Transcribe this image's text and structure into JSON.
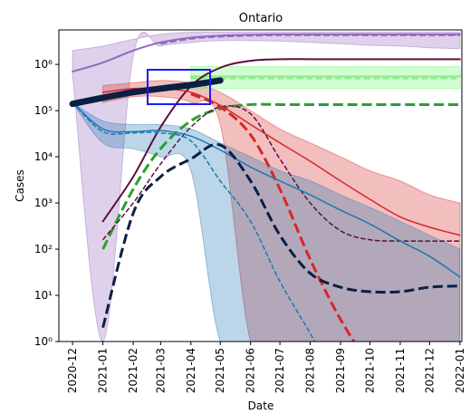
{
  "chart_data": {
    "type": "line",
    "title": "Ontario",
    "x_label": "Date",
    "y_label": "Cases",
    "log_y": true,
    "xlim": [
      "2020-11-17",
      "2022-01-03"
    ],
    "ylim": [
      1,
      5600000
    ],
    "x": [
      "2020-12",
      "2021-01",
      "2021-02",
      "2021-03",
      "2021-04",
      "2021-05",
      "2021-06",
      "2021-07",
      "2021-08",
      "2021-09",
      "2021-10",
      "2021-11",
      "2021-12",
      "2022-01"
    ],
    "xticks": [
      "2020-12",
      "2021-01",
      "2021-02",
      "2021-03",
      "2021-04",
      "2021-05",
      "2021-06",
      "2021-07",
      "2021-08",
      "2021-09",
      "2021-10",
      "2021-11",
      "2021-12",
      "2022-01"
    ],
    "yticks": [
      {
        "value": 1,
        "label": "10⁰"
      },
      {
        "value": 10,
        "label": "10¹"
      },
      {
        "value": 100,
        "label": "10²"
      },
      {
        "value": 1000,
        "label": "10³"
      },
      {
        "value": 10000,
        "label": "10⁴"
      },
      {
        "value": 100000,
        "label": "10⁵"
      },
      {
        "value": 1000000,
        "label": "10⁶"
      }
    ],
    "bands": [
      {
        "color": "#9467bd",
        "upper": [
          2000000,
          2500000,
          3500000,
          4500000,
          5000000,
          5000000,
          5000000,
          5000000,
          5000000,
          5000000,
          5000000,
          5000000,
          5000000,
          5000000
        ],
        "lower": [
          600000,
          1,
          1500000,
          2500000,
          3000000,
          3300000,
          3300000,
          3200000,
          3000000,
          2800000,
          2600000,
          2500000,
          2300000,
          2200000
        ]
      },
      {
        "color": "#d62728",
        "upper": [
          null,
          350000,
          400000,
          450000,
          400000,
          250000,
          100000,
          40000,
          20000,
          10000,
          5000,
          3000,
          1500,
          1000
        ],
        "lower": [
          null,
          150000,
          200000,
          200000,
          150000,
          50000,
          1,
          1,
          1,
          1,
          1,
          1,
          1,
          1
        ]
      },
      {
        "color": "#1f77b4",
        "upper": [
          150000,
          60000,
          50000,
          50000,
          40000,
          20000,
          10000,
          5000,
          3000,
          1500,
          800,
          400,
          200,
          100
        ],
        "lower": [
          150000,
          20000,
          15000,
          10000,
          5000,
          1,
          1,
          1,
          1,
          1,
          1,
          1,
          1,
          1
        ]
      },
      {
        "color": "#66ff66",
        "upper": [
          null,
          null,
          null,
          null,
          900000,
          900000,
          900000,
          900000,
          900000,
          900000,
          900000,
          900000,
          900000,
          900000
        ],
        "lower": [
          null,
          null,
          null,
          null,
          300000,
          300000,
          300000,
          300000,
          300000,
          300000,
          300000,
          300000,
          300000,
          300000
        ]
      }
    ],
    "series": [
      {
        "color": "#9467bd",
        "linestyle": "solid",
        "linewidth": 2,
        "values": [
          700000,
          1100000,
          2000000,
          3000000,
          3800000,
          4200000,
          4400000,
          4500000,
          4500000,
          4500000,
          4500000,
          4500000,
          4500000,
          4500000
        ]
      },
      {
        "color": "#9467bd",
        "linestyle": "dashed",
        "linewidth": 2,
        "values": [
          null,
          null,
          null,
          2800000,
          3600000,
          4000000,
          4200000,
          4300000,
          4300000,
          4300000,
          4300000,
          4300000,
          4300000,
          4300000
        ]
      },
      {
        "color": "#8fe88f",
        "linestyle": "solid",
        "linewidth": 2,
        "values": [
          null,
          null,
          null,
          null,
          550000,
          550000,
          550000,
          550000,
          550000,
          550000,
          550000,
          550000,
          550000,
          550000
        ]
      },
      {
        "color": "#8fe88f",
        "linestyle": "dashed",
        "linewidth": 2,
        "values": [
          null,
          null,
          null,
          null,
          500000,
          500000,
          500000,
          500000,
          500000,
          500000,
          500000,
          500000,
          500000,
          500000
        ]
      },
      {
        "color": "#2ca02c",
        "linestyle": "dashed",
        "linewidth": 3,
        "values": [
          null,
          100,
          2000,
          15000,
          60000,
          110000,
          135000,
          135000,
          135000,
          135000,
          135000,
          135000,
          135000,
          135000
        ]
      },
      {
        "color": "#5b0f3f",
        "linestyle": "solid",
        "linewidth": 2,
        "values": [
          null,
          400,
          3700,
          44000,
          340000,
          850000,
          1200000,
          1300000,
          1300000,
          1300000,
          1300000,
          1300000,
          1300000,
          1300000
        ]
      },
      {
        "color": "#5b0f3f",
        "linestyle": "dashed",
        "linewidth": 1.5,
        "values": [
          null,
          160,
          1000,
          7000,
          44000,
          120000,
          85000,
          9000,
          1000,
          250,
          160,
          150,
          150,
          150
        ]
      },
      {
        "color": "#d62728",
        "linestyle": "solid",
        "linewidth": 1.5,
        "values": [
          null,
          250000,
          300000,
          300000,
          250000,
          130000,
          50000,
          20000,
          8000,
          3000,
          1200,
          500,
          300,
          200
        ]
      },
      {
        "color": "#d62728",
        "linestyle": "dashed",
        "linewidth": 3,
        "values": [
          null,
          null,
          null,
          null,
          230000,
          120000,
          30000,
          2000,
          60,
          3,
          0.3,
          null,
          null,
          null
        ]
      },
      {
        "color": "#1f77b4",
        "linestyle": "solid",
        "linewidth": 1.5,
        "values": [
          150000,
          40000,
          35000,
          37000,
          28000,
          14000,
          6000,
          3000,
          1500,
          700,
          350,
          150,
          70,
          25
        ]
      },
      {
        "color": "#1f77b4",
        "linestyle": "dashed",
        "linewidth": 1.5,
        "values": [
          150000,
          35000,
          33000,
          33000,
          22000,
          3000,
          400,
          20,
          1.5,
          0.1,
          null,
          null,
          null,
          null
        ]
      },
      {
        "color": "#0b1f44",
        "linestyle": "dashed",
        "linewidth": 3,
        "values": [
          null,
          2,
          600,
          3700,
          9000,
          18000,
          3000,
          200,
          30,
          15,
          12,
          12,
          15,
          16
        ]
      },
      {
        "color": "#0b1f44",
        "linestyle": "solid",
        "linewidth": 7,
        "values": [
          140000,
          190000,
          250000,
          300000,
          360000,
          450000,
          null,
          null,
          null,
          null,
          null,
          null,
          null,
          null
        ]
      }
    ]
  }
}
